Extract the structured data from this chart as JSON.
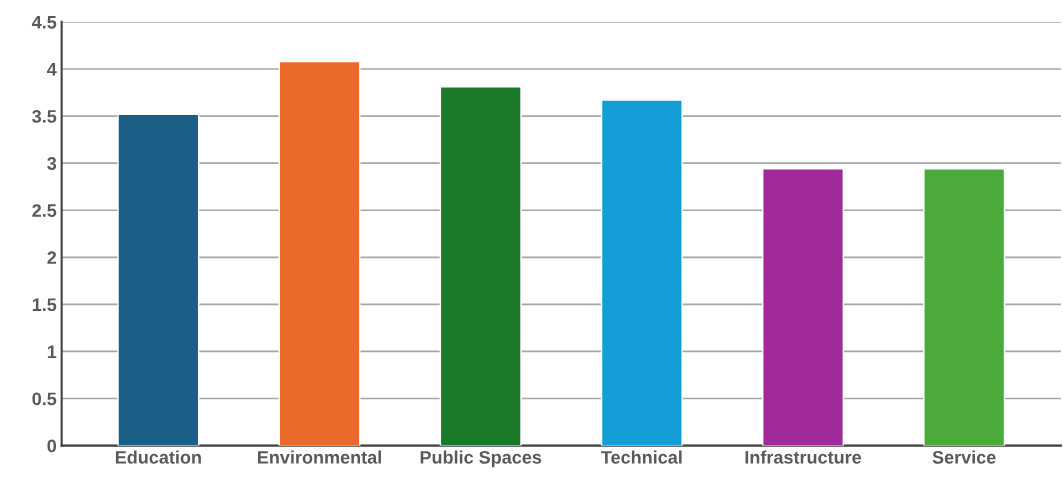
{
  "chart_data": {
    "type": "bar",
    "categories": [
      "Education",
      "Environmental",
      "Public Spaces",
      "Technical",
      "Infrastructure",
      "Service"
    ],
    "values": [
      3.52,
      4.08,
      3.81,
      3.67,
      2.94,
      2.94
    ],
    "colors": [
      "#1a5f86",
      "#ea6a2a",
      "#1b7a2a",
      "#139ed8",
      "#a02a98",
      "#4caa3a"
    ],
    "ylim": [
      0,
      4.5
    ],
    "yticks": [
      0,
      0.5,
      1,
      1.5,
      2,
      2.5,
      3,
      3.5,
      4,
      4.5
    ],
    "grid": "y"
  }
}
